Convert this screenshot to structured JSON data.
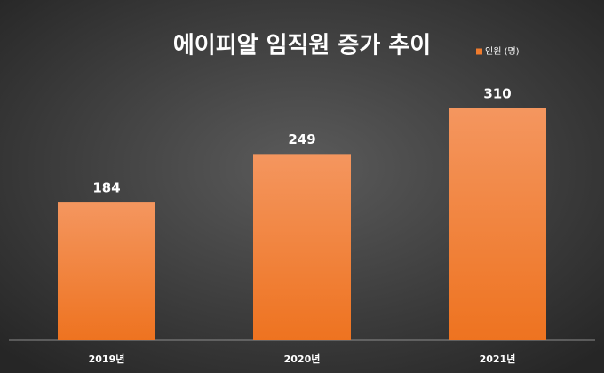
{
  "chart_data": {
    "type": "bar",
    "title": "에이피알 임직원 증가 추이",
    "categories": [
      "2019년",
      "2020년",
      "2021년"
    ],
    "series": [
      {
        "name": "인원 (명)",
        "color": "#ef7b2d",
        "values": [
          184,
          249,
          310
        ]
      }
    ],
    "legend": "top-right"
  }
}
